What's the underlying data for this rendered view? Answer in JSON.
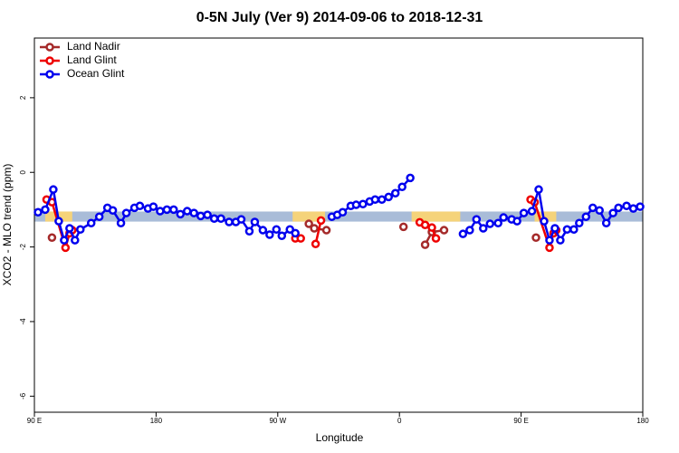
{
  "chart_data": {
    "type": "line",
    "title": "0-5N July (Ver 9)   2014-09-06 to 2018-12-31",
    "xlabel": "Longitude",
    "ylabel": "XCO2 - MLO trend (ppm)",
    "xlim": [
      90,
      540
    ],
    "ylim": [
      -6.43,
      3.6
    ],
    "xticks": [
      {
        "value": 90,
        "label": "90 E"
      },
      180,
      {
        "value": 270,
        "label": "90 W"
      },
      {
        "value": 360,
        "label": "0"
      },
      {
        "value": 450,
        "label": "90 E"
      },
      {
        "value": 540,
        "label": "180"
      }
    ],
    "yticks": [
      -6,
      -4,
      -2,
      0,
      2
    ],
    "band": {
      "ylim": [
        -1.32,
        -1.05
      ],
      "color": "#a9bcd8"
    },
    "land_spans": [
      [
        98,
        118
      ],
      [
        281,
        305
      ],
      [
        369,
        405
      ],
      [
        460,
        476
      ]
    ],
    "land_color": "#f5d37a",
    "legend": "top-left",
    "series": [
      {
        "name": "Land Nadir",
        "color": "#a52a2a",
        "x": [
          103,
          null,
          293,
          297,
          306,
          null,
          363,
          null,
          379,
          384,
          393,
          null,
          461
        ],
        "values": [
          -1.75,
          null,
          -1.38,
          -1.5,
          -1.55,
          null,
          -1.46,
          null,
          -1.94,
          -1.6,
          -1.55,
          null,
          -1.75
        ]
      },
      {
        "name": "Land Glint",
        "color": "#ee0000",
        "x": [
          99,
          103,
          113,
          116,
          118,
          null,
          283,
          287,
          null,
          298,
          302,
          null,
          375,
          379,
          384,
          387,
          null,
          457,
          460,
          471,
          474,
          476
        ],
        "values": [
          -0.73,
          -0.8,
          -2.02,
          -1.63,
          -1.55,
          null,
          -1.77,
          -1.77,
          null,
          -1.92,
          -1.29,
          null,
          -1.34,
          -1.41,
          -1.48,
          -1.77,
          null,
          -0.73,
          -0.8,
          -2.02,
          -1.63,
          -1.55
        ]
      },
      {
        "name": "Ocean Glint",
        "color": "#0000ee",
        "x": [
          92.7,
          98,
          104,
          108,
          112,
          116,
          120,
          124,
          132,
          138,
          144,
          148,
          154,
          158,
          164,
          168,
          174,
          178,
          183,
          188,
          193,
          198,
          203,
          208,
          213,
          218,
          223,
          228,
          234,
          239,
          243,
          249,
          253,
          259,
          264,
          269,
          273,
          279,
          283,
          null,
          310,
          314,
          318,
          324,
          328,
          333,
          338,
          342,
          347,
          352,
          357,
          362,
          368,
          null,
          407,
          412,
          417,
          422,
          427,
          433,
          437,
          443,
          447,
          452,
          458,
          463,
          467,
          471,
          475,
          479,
          484,
          489,
          493,
          498,
          503,
          508,
          513,
          518,
          522,
          528,
          533,
          538
        ],
        "values": [
          -1.07,
          -1.0,
          -0.46,
          -1.31,
          -1.82,
          -1.5,
          -1.82,
          -1.53,
          -1.36,
          -1.19,
          -0.95,
          -1.02,
          -1.36,
          -1.09,
          -0.95,
          -0.9,
          -0.97,
          -0.92,
          -1.04,
          -1.0,
          -1.0,
          -1.12,
          -1.04,
          -1.09,
          -1.17,
          -1.14,
          -1.24,
          -1.24,
          -1.33,
          -1.33,
          -1.26,
          -1.58,
          -1.33,
          -1.55,
          -1.67,
          -1.53,
          -1.7,
          -1.53,
          -1.63,
          null,
          -1.19,
          -1.14,
          -1.07,
          -0.9,
          -0.87,
          -0.85,
          -0.78,
          -0.73,
          -0.73,
          -0.66,
          -0.56,
          -0.39,
          -0.15,
          null,
          -1.65,
          -1.55,
          -1.26,
          -1.5,
          -1.38,
          -1.36,
          -1.21,
          -1.26,
          -1.31,
          -1.09,
          -1.04,
          -0.46,
          -1.31,
          -1.82,
          -1.5,
          -1.82,
          -1.53,
          -1.53,
          -1.36,
          -1.19,
          -0.95,
          -1.02,
          -1.36,
          -1.09,
          -0.95,
          -0.9,
          -0.97,
          -0.92
        ]
      }
    ]
  }
}
